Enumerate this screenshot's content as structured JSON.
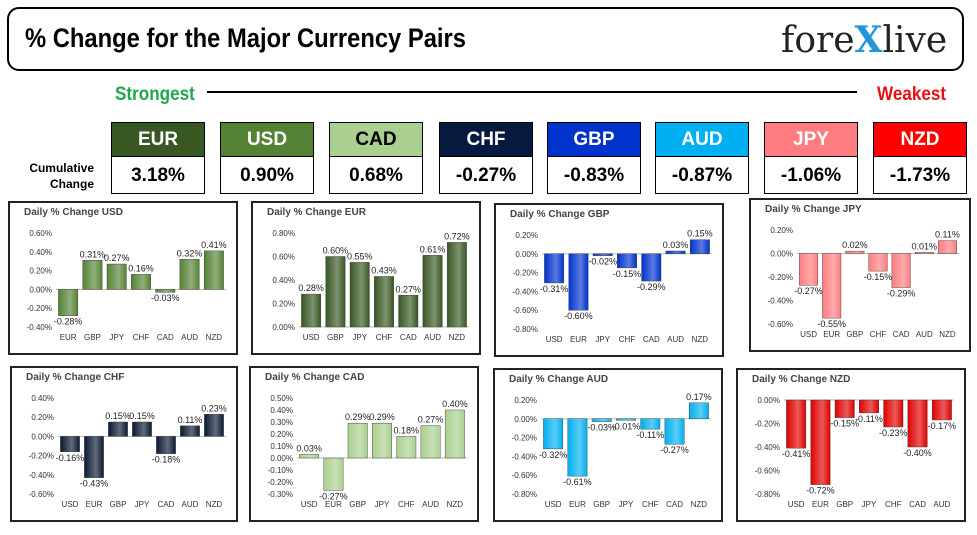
{
  "header": {
    "title": "% Change for the Major Currency Pairs",
    "logo_left": "fore",
    "logo_x": "X",
    "logo_right": "live"
  },
  "scale": {
    "strongest": "Strongest",
    "weakest": "Weakest"
  },
  "cumulative": {
    "label_line1": "Cumulative",
    "label_line2": "Change",
    "items": [
      {
        "name": "EUR",
        "value": "3.18%",
        "bg": "#385723",
        "fg": "#ffffff"
      },
      {
        "name": "USD",
        "value": "0.90%",
        "bg": "#548235",
        "fg": "#ffffff"
      },
      {
        "name": "CAD",
        "value": "0.68%",
        "bg": "#a9d08e",
        "fg": "#000000"
      },
      {
        "name": "CHF",
        "value": "-0.27%",
        "bg": "#061a40",
        "fg": "#ffffff"
      },
      {
        "name": "GBP",
        "value": "-0.83%",
        "bg": "#0033cc",
        "fg": "#ffffff"
      },
      {
        "name": "AUD",
        "value": "-0.87%",
        "bg": "#00b0f0",
        "fg": "#ffffff"
      },
      {
        "name": "JPY",
        "value": "-1.06%",
        "bg": "#ff7c80",
        "fg": "#ffffff"
      },
      {
        "name": "NZD",
        "value": "-1.73%",
        "bg": "#ff0000",
        "fg": "#ffffff"
      }
    ]
  },
  "chart_data": [
    {
      "type": "bar",
      "title": "Daily % Change USD",
      "color": "#548235",
      "categories": [
        "EUR",
        "GBP",
        "JPY",
        "CHF",
        "CAD",
        "AUD",
        "NZD"
      ],
      "values": [
        -0.28,
        0.31,
        0.27,
        0.16,
        -0.03,
        0.32,
        0.41
      ],
      "labels": [
        "-0.28%",
        "0.31%",
        "0.27%",
        "0.16%",
        "-0.03%",
        "0.32%",
        "0.41%"
      ],
      "ylim": [
        -0.4,
        0.6
      ],
      "ticks": [
        "-0.40%",
        "-0.20%",
        "0.00%",
        "0.20%",
        "0.40%",
        "0.60%"
      ]
    },
    {
      "type": "bar",
      "title": "Daily % Change EUR",
      "color": "#385723",
      "categories": [
        "USD",
        "GBP",
        "JPY",
        "CHF",
        "CAD",
        "AUD",
        "NZD"
      ],
      "values": [
        0.28,
        0.6,
        0.55,
        0.43,
        0.27,
        0.61,
        0.72
      ],
      "labels": [
        "0.28%",
        "0.60%",
        "0.55%",
        "0.43%",
        "0.27%",
        "0.61%",
        "0.72%"
      ],
      "ylim": [
        0,
        0.8
      ],
      "ticks": [
        "0.00%",
        "0.20%",
        "0.40%",
        "0.60%",
        "0.80%"
      ]
    },
    {
      "type": "bar",
      "title": "Daily % Change GBP",
      "color": "#0033cc",
      "categories": [
        "USD",
        "EUR",
        "JPY",
        "CHF",
        "CAD",
        "AUD",
        "NZD"
      ],
      "values": [
        -0.31,
        -0.6,
        -0.02,
        -0.15,
        -0.29,
        0.03,
        0.15
      ],
      "labels": [
        "-0.31%",
        "-0.60%",
        "-0.02%",
        "-0.15%",
        "-0.29%",
        "0.03%",
        "0.15%"
      ],
      "ylim": [
        -0.8,
        0.2
      ],
      "ticks": [
        "-0.80%",
        "-0.60%",
        "-0.40%",
        "-0.20%",
        "0.00%",
        "0.20%"
      ]
    },
    {
      "type": "bar",
      "title": "Daily % Change JPY",
      "color": "#ff7c80",
      "categories": [
        "USD",
        "EUR",
        "GBP",
        "CHF",
        "CAD",
        "AUD",
        "NZD"
      ],
      "values": [
        -0.27,
        -0.55,
        0.02,
        -0.15,
        -0.29,
        0.01,
        0.11
      ],
      "labels": [
        "-0.27%",
        "-0.55%",
        "0.02%",
        "-0.15%",
        "-0.29%",
        "0.01%",
        "0.11%"
      ],
      "ylim": [
        -0.6,
        0.2
      ],
      "ticks": [
        "-0.60%",
        "-0.40%",
        "-0.20%",
        "0.00%",
        "0.20%"
      ]
    },
    {
      "type": "bar",
      "title": "Daily % Change CHF",
      "color": "#0b1a33",
      "categories": [
        "USD",
        "EUR",
        "GBP",
        "JPY",
        "CAD",
        "AUD",
        "NZD"
      ],
      "values": [
        -0.16,
        -0.43,
        0.15,
        0.15,
        -0.18,
        0.11,
        0.23
      ],
      "labels": [
        "-0.16%",
        "-0.43%",
        "0.15%",
        "0.15%",
        "-0.18%",
        "0.11%",
        "0.23%"
      ],
      "ylim": [
        -0.6,
        0.4
      ],
      "ticks": [
        "-0.60%",
        "-0.40%",
        "-0.20%",
        "0.00%",
        "0.20%",
        "0.40%"
      ]
    },
    {
      "type": "bar",
      "title": "Daily % Change CAD",
      "color": "#a9d08e",
      "categories": [
        "USD",
        "EUR",
        "GBP",
        "JPY",
        "CHF",
        "AUD",
        "NZD"
      ],
      "values": [
        0.03,
        -0.27,
        0.29,
        0.29,
        0.18,
        0.27,
        0.4
      ],
      "labels": [
        "0.03%",
        "-0.27%",
        "0.29%",
        "0.29%",
        "0.18%",
        "0.27%",
        "0.40%"
      ],
      "ylim": [
        -0.3,
        0.5
      ],
      "ticks": [
        "-0.30%",
        "-0.20%",
        "-0.10%",
        "0.00%",
        "0.10%",
        "0.20%",
        "0.30%",
        "0.40%",
        "0.50%"
      ]
    },
    {
      "type": "bar",
      "title": "Daily % Change AUD",
      "color": "#00b0f0",
      "categories": [
        "USD",
        "EUR",
        "GBP",
        "JPY",
        "CHF",
        "CAD",
        "NZD"
      ],
      "values": [
        -0.32,
        -0.61,
        -0.03,
        -0.01,
        -0.11,
        -0.27,
        0.17
      ],
      "labels": [
        "-0.32%",
        "-0.61%",
        "-0.03%",
        "-0.01%",
        "-0.11%",
        "-0.27%",
        "0.17%"
      ],
      "ylim": [
        -0.8,
        0.2
      ],
      "ticks": [
        "-0.80%",
        "-0.60%",
        "-0.40%",
        "-0.20%",
        "0.00%",
        "0.20%"
      ]
    },
    {
      "type": "bar",
      "title": "Daily % Change NZD",
      "color": "#e00000",
      "categories": [
        "USD",
        "EUR",
        "GBP",
        "JPY",
        "CHF",
        "CAD",
        "AUD"
      ],
      "values": [
        -0.41,
        -0.72,
        -0.15,
        -0.11,
        -0.23,
        -0.4,
        -0.17
      ],
      "labels": [
        "-0.41%",
        "-0.72%",
        "-0.15%",
        "-0.11%",
        "-0.23%",
        "-0.40%",
        "-0.17%"
      ],
      "ylim": [
        -0.8,
        0
      ],
      "ticks": [
        "-0.80%",
        "-0.60%",
        "-0.40%",
        "-0.20%",
        "0.00%"
      ]
    }
  ]
}
